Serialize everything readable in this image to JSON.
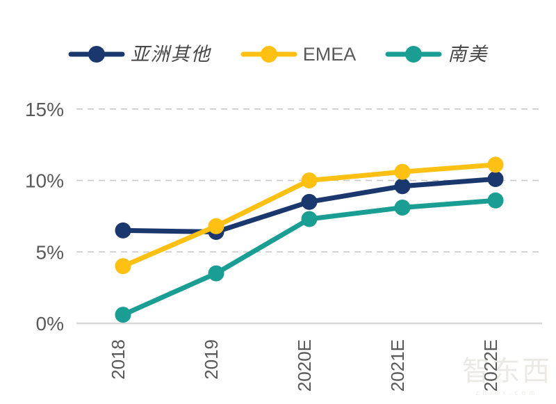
{
  "chart_data": {
    "type": "line",
    "title": "",
    "categories": [
      "2018",
      "2019",
      "2020E",
      "2021E",
      "2022E"
    ],
    "series": [
      {
        "name": "亚洲其他",
        "color": "#1B386E",
        "values": [
          6.5,
          6.4,
          8.5,
          9.6,
          10.1
        ]
      },
      {
        "name": "EMEA",
        "color": "#FDC013",
        "values": [
          4.0,
          6.8,
          10.0,
          10.6,
          11.1
        ]
      },
      {
        "name": "南美",
        "color": "#1A9E94",
        "values": [
          0.6,
          3.5,
          7.3,
          8.1,
          8.6
        ]
      }
    ],
    "yticks": [
      {
        "value": 0,
        "label": "0%"
      },
      {
        "value": 5,
        "label": "5%"
      },
      {
        "value": 10,
        "label": "10%"
      },
      {
        "value": 15,
        "label": "15%"
      }
    ],
    "ylim": [
      0,
      15
    ],
    "grid": "horizontal dashed at 5/10/15, solid baseline at 0",
    "legend_position": "top"
  },
  "colors": {
    "grid_line": "#C6C6C6",
    "axis_line": "#D8D8D8",
    "tick_label": "#595959"
  },
  "watermark": {
    "text": "智东西",
    "sub": "zhidx.com"
  }
}
